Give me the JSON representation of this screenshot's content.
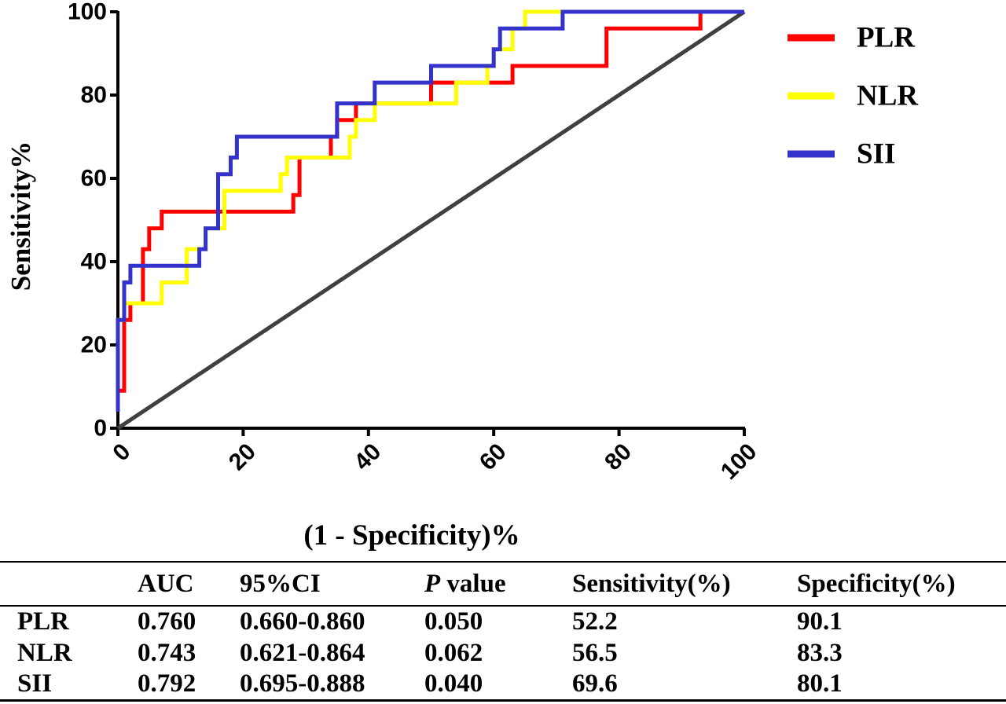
{
  "chart_data": {
    "type": "line",
    "title": "",
    "xlabel": "(1 - Specificity)%",
    "ylabel": "Sensitivity%",
    "xlim": [
      0,
      100
    ],
    "ylim": [
      0,
      100
    ],
    "x_ticks": [
      "0",
      "20",
      "40",
      "60",
      "80",
      "100"
    ],
    "y_ticks": [
      "0",
      "20",
      "40",
      "60",
      "80",
      "100"
    ],
    "grid": false,
    "legend": "top-right",
    "reference_line": {
      "from": [
        0,
        0
      ],
      "to": [
        100,
        100
      ],
      "color": "#404040"
    },
    "series": [
      {
        "name": "PLR",
        "color": "#ff0000",
        "points": [
          [
            0,
            4
          ],
          [
            0,
            9
          ],
          [
            1,
            9
          ],
          [
            1,
            26
          ],
          [
            2,
            26
          ],
          [
            2,
            30
          ],
          [
            4,
            30
          ],
          [
            4,
            43
          ],
          [
            5,
            43
          ],
          [
            5,
            48
          ],
          [
            7,
            48
          ],
          [
            7,
            52
          ],
          [
            28,
            52
          ],
          [
            28,
            56
          ],
          [
            29,
            56
          ],
          [
            29,
            65
          ],
          [
            34,
            65
          ],
          [
            34,
            70
          ],
          [
            35,
            70
          ],
          [
            35,
            74
          ],
          [
            38,
            74
          ],
          [
            38,
            78
          ],
          [
            50,
            78
          ],
          [
            50,
            83
          ],
          [
            63,
            83
          ],
          [
            63,
            87
          ],
          [
            78,
            87
          ],
          [
            78,
            96
          ],
          [
            93,
            96
          ],
          [
            93,
            100
          ],
          [
            100,
            100
          ]
        ]
      },
      {
        "name": "NLR",
        "color": "#ffff00",
        "points": [
          [
            0,
            9
          ],
          [
            0,
            17
          ],
          [
            0,
            26
          ],
          [
            1,
            26
          ],
          [
            1,
            30
          ],
          [
            7,
            30
          ],
          [
            7,
            35
          ],
          [
            11,
            35
          ],
          [
            11,
            43
          ],
          [
            14,
            43
          ],
          [
            14,
            48
          ],
          [
            17,
            48
          ],
          [
            17,
            57
          ],
          [
            26,
            57
          ],
          [
            26,
            61
          ],
          [
            27,
            61
          ],
          [
            27,
            65
          ],
          [
            37,
            65
          ],
          [
            37,
            70
          ],
          [
            38,
            70
          ],
          [
            38,
            74
          ],
          [
            41,
            74
          ],
          [
            41,
            78
          ],
          [
            54,
            78
          ],
          [
            54,
            83
          ],
          [
            59,
            83
          ],
          [
            59,
            87
          ],
          [
            60,
            87
          ],
          [
            60,
            91
          ],
          [
            63,
            91
          ],
          [
            63,
            96
          ],
          [
            65,
            96
          ],
          [
            65,
            100
          ],
          [
            100,
            100
          ]
        ]
      },
      {
        "name": "SII",
        "color": "#3333cc",
        "points": [
          [
            0,
            4
          ],
          [
            0,
            26
          ],
          [
            1,
            26
          ],
          [
            1,
            35
          ],
          [
            2,
            35
          ],
          [
            2,
            39
          ],
          [
            13,
            39
          ],
          [
            13,
            43
          ],
          [
            14,
            43
          ],
          [
            14,
            48
          ],
          [
            16,
            48
          ],
          [
            16,
            52
          ],
          [
            16,
            61
          ],
          [
            18,
            61
          ],
          [
            18,
            65
          ],
          [
            19,
            65
          ],
          [
            19,
            70
          ],
          [
            35,
            70
          ],
          [
            35,
            74
          ],
          [
            35,
            78
          ],
          [
            41,
            78
          ],
          [
            41,
            83
          ],
          [
            50,
            83
          ],
          [
            50,
            87
          ],
          [
            60,
            87
          ],
          [
            60,
            91
          ],
          [
            61,
            91
          ],
          [
            61,
            96
          ],
          [
            71,
            96
          ],
          [
            71,
            100
          ],
          [
            100,
            100
          ]
        ]
      }
    ]
  },
  "table": {
    "headers": [
      "",
      "AUC",
      "95%CI",
      "value",
      "Sensitivity(%)",
      "Specificity(%)"
    ],
    "p_prefix": "P",
    "rows": [
      [
        "PLR",
        "0.760",
        "0.660-0.860",
        "0.050",
        "52.2",
        "90.1"
      ],
      [
        "NLR",
        "0.743",
        "0.621-0.864",
        "0.062",
        "56.5",
        "83.3"
      ],
      [
        "SII",
        "0.792",
        "0.695-0.888",
        "0.040",
        "69.6",
        "80.1"
      ]
    ]
  }
}
